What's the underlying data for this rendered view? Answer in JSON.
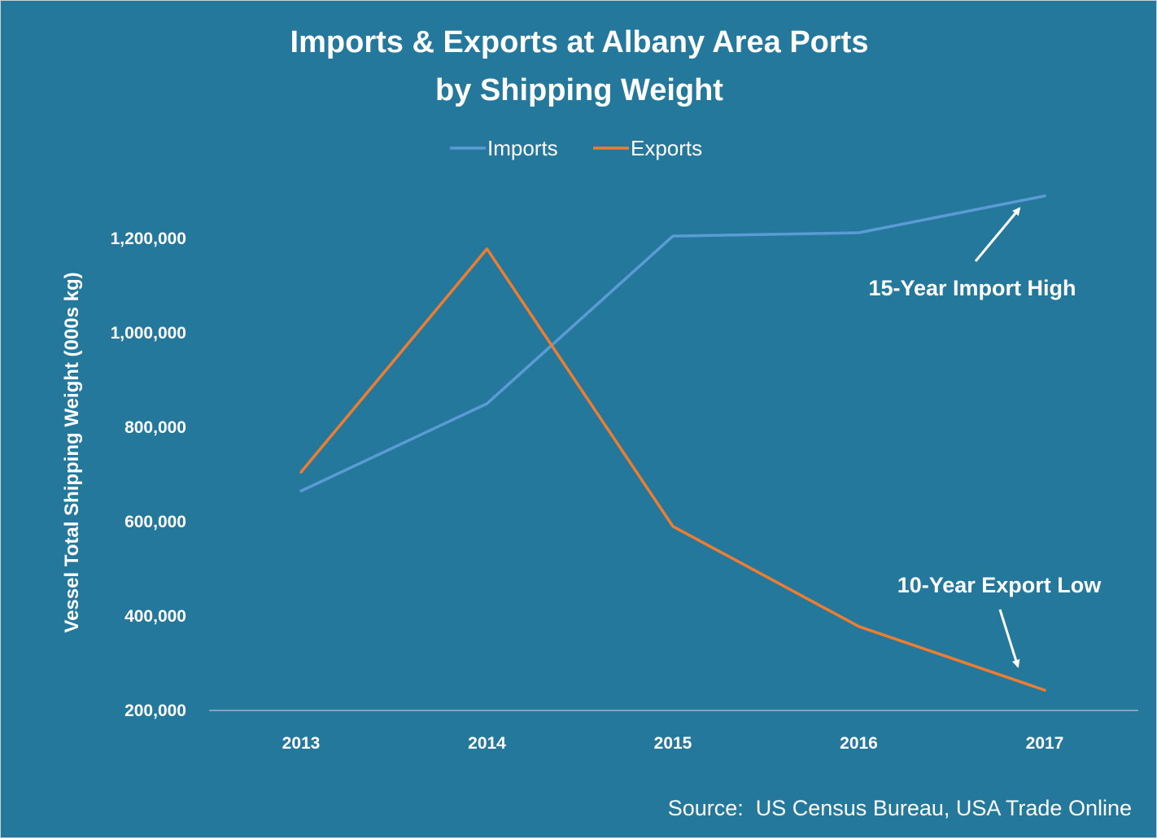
{
  "chart_data": {
    "type": "line",
    "title_line1": "Imports & Exports  at Albany Area Ports",
    "title_line2": "by Shipping Weight",
    "ylabel": "Vessel Total  Shipping Weight (000s kg)",
    "xlabel": "",
    "categories": [
      "2013",
      "2014",
      "2015",
      "2016",
      "2017"
    ],
    "ylim": [
      200000,
      1300000
    ],
    "yticks": [
      200000,
      400000,
      600000,
      800000,
      1000000,
      1200000
    ],
    "ytick_labels": [
      "200,000",
      "400,000",
      "600,000",
      "800,000",
      "1,000,000",
      "1,200,000"
    ],
    "series": [
      {
        "name": "Imports",
        "color": "#5b9bd5",
        "values": [
          665000,
          850000,
          1205000,
          1212000,
          1290000
        ]
      },
      {
        "name": "Exports",
        "color": "#ed7d31",
        "values": [
          705000,
          1178000,
          590000,
          378000,
          243000
        ]
      }
    ],
    "legend_position": "top",
    "grid": false,
    "annotations": [
      {
        "text": "15-Year Import High",
        "series": "Imports",
        "category": "2017"
      },
      {
        "text": "10-Year Export Low",
        "series": "Exports",
        "category": "2017"
      }
    ],
    "source": "Source:  US Census Bureau, USA Trade Online",
    "background_color": "#24789c",
    "text_color": "#ffffff"
  }
}
